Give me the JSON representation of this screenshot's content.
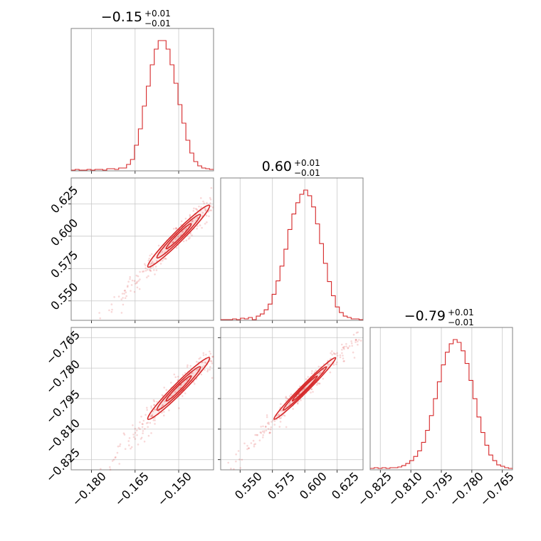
{
  "style": {
    "color": "#d62728",
    "grid": true
  },
  "titles": [
    {
      "main": "−0.15",
      "plus": "+0.01",
      "minus": "−0.01"
    },
    {
      "main": "0.60",
      "plus": "+0.01",
      "minus": "−0.01"
    },
    {
      "main": "−0.79",
      "plus": "+0.01",
      "minus": "−0.01"
    }
  ],
  "tick_labels": {
    "p0": [
      "−0.180",
      "−0.165",
      "−0.150"
    ],
    "p1": [
      "0.550",
      "0.575",
      "0.600",
      "0.625"
    ],
    "p2": [
      "−0.825",
      "−0.810",
      "−0.795",
      "−0.780",
      "−0.765"
    ]
  },
  "chart_data": {
    "type": "corner",
    "parameters": [
      {
        "range": [
          -0.187,
          -0.138
        ],
        "ticks": [
          -0.18,
          -0.165,
          -0.15
        ],
        "median": -0.15,
        "plus": 0.01,
        "minus": 0.01
      },
      {
        "range": [
          0.535,
          0.645
        ],
        "ticks": [
          0.55,
          0.575,
          0.6,
          0.625
        ],
        "median": 0.6,
        "plus": 0.01,
        "minus": 0.01
      },
      {
        "range": [
          -0.83,
          -0.76
        ],
        "ticks": [
          -0.825,
          -0.81,
          -0.795,
          -0.78,
          -0.765
        ],
        "median": -0.79,
        "plus": 0.01,
        "minus": 0.01
      }
    ],
    "histograms": [
      {
        "bin_edges": [
          -0.187,
          -0.138
        ],
        "counts": [
          0,
          1,
          0,
          0,
          1,
          0,
          1,
          1,
          0,
          2,
          2,
          1,
          3,
          3,
          8,
          15,
          35,
          58,
          90,
          118,
          148,
          170,
          182,
          182,
          170,
          148,
          122,
          92,
          66,
          42,
          24,
          12,
          6,
          3,
          2,
          1
        ]
      },
      {
        "bin_edges": [
          0.535,
          0.645
        ],
        "counts": [
          0,
          0,
          0,
          1,
          0,
          2,
          1,
          3,
          0,
          5,
          8,
          14,
          22,
          36,
          55,
          76,
          100,
          128,
          150,
          166,
          178,
          184,
          176,
          160,
          136,
          108,
          80,
          54,
          34,
          18,
          10,
          5,
          3,
          1,
          1,
          0
        ]
      },
      {
        "bin_edges": [
          -0.83,
          -0.76
        ],
        "counts": [
          1,
          2,
          1,
          2,
          1,
          2,
          2,
          3,
          5,
          8,
          12,
          18,
          26,
          38,
          55,
          76,
          100,
          124,
          148,
          166,
          178,
          184,
          180,
          168,
          150,
          126,
          100,
          74,
          52,
          34,
          20,
          12,
          6,
          4,
          2,
          1
        ]
      }
    ],
    "correlation": {
      "0-1": 0.98,
      "0-2": 0.98,
      "1-2": 0.99
    }
  }
}
